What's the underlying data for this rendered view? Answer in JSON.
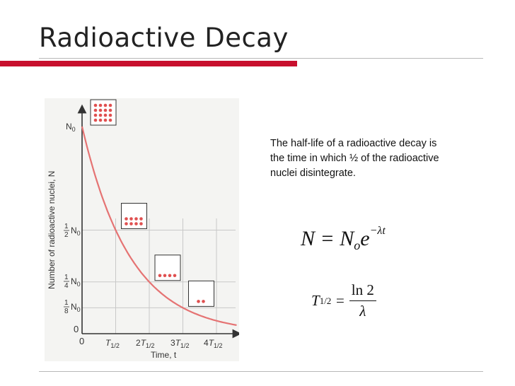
{
  "slide": {
    "title": "Radioactive Decay",
    "description": "The half-life of a radioactive decay is the time in which ½ of the radioactive nuclei disintegrate."
  },
  "equations": {
    "decay_law": {
      "lhs": "N",
      "rhs_base": "N",
      "rhs_sub": "o",
      "rhs_e": "e",
      "exponent": "−λt"
    },
    "half_life": {
      "lhs": "T",
      "lhs_sub": "1/2",
      "numerator": "ln 2",
      "denominator": "λ"
    }
  },
  "graph": {
    "ylabel": "Number of radioactive nuclei, N",
    "xlabel": "Time, t",
    "x_ticks": [
      "0",
      "T1/2",
      "2T1/2",
      "3T1/2",
      "4T1/2"
    ],
    "y_ticks": [
      "0",
      "1/8 N0",
      "1/4 N0",
      "1/2 N0",
      "N0"
    ],
    "curve_color": "#e57373",
    "dot_color": "#e05050",
    "curve": {
      "N0": 1,
      "half_life": 1,
      "x_range": [
        0,
        4.6
      ]
    },
    "boxes": [
      {
        "time": 0,
        "dots": 16
      },
      {
        "time": 1,
        "dots": 8
      },
      {
        "time": 2,
        "dots": 4
      },
      {
        "time": 3,
        "dots": 2
      }
    ]
  },
  "colors": {
    "accent_red": "#c8102e",
    "rule_gray": "#b8b8b8"
  }
}
